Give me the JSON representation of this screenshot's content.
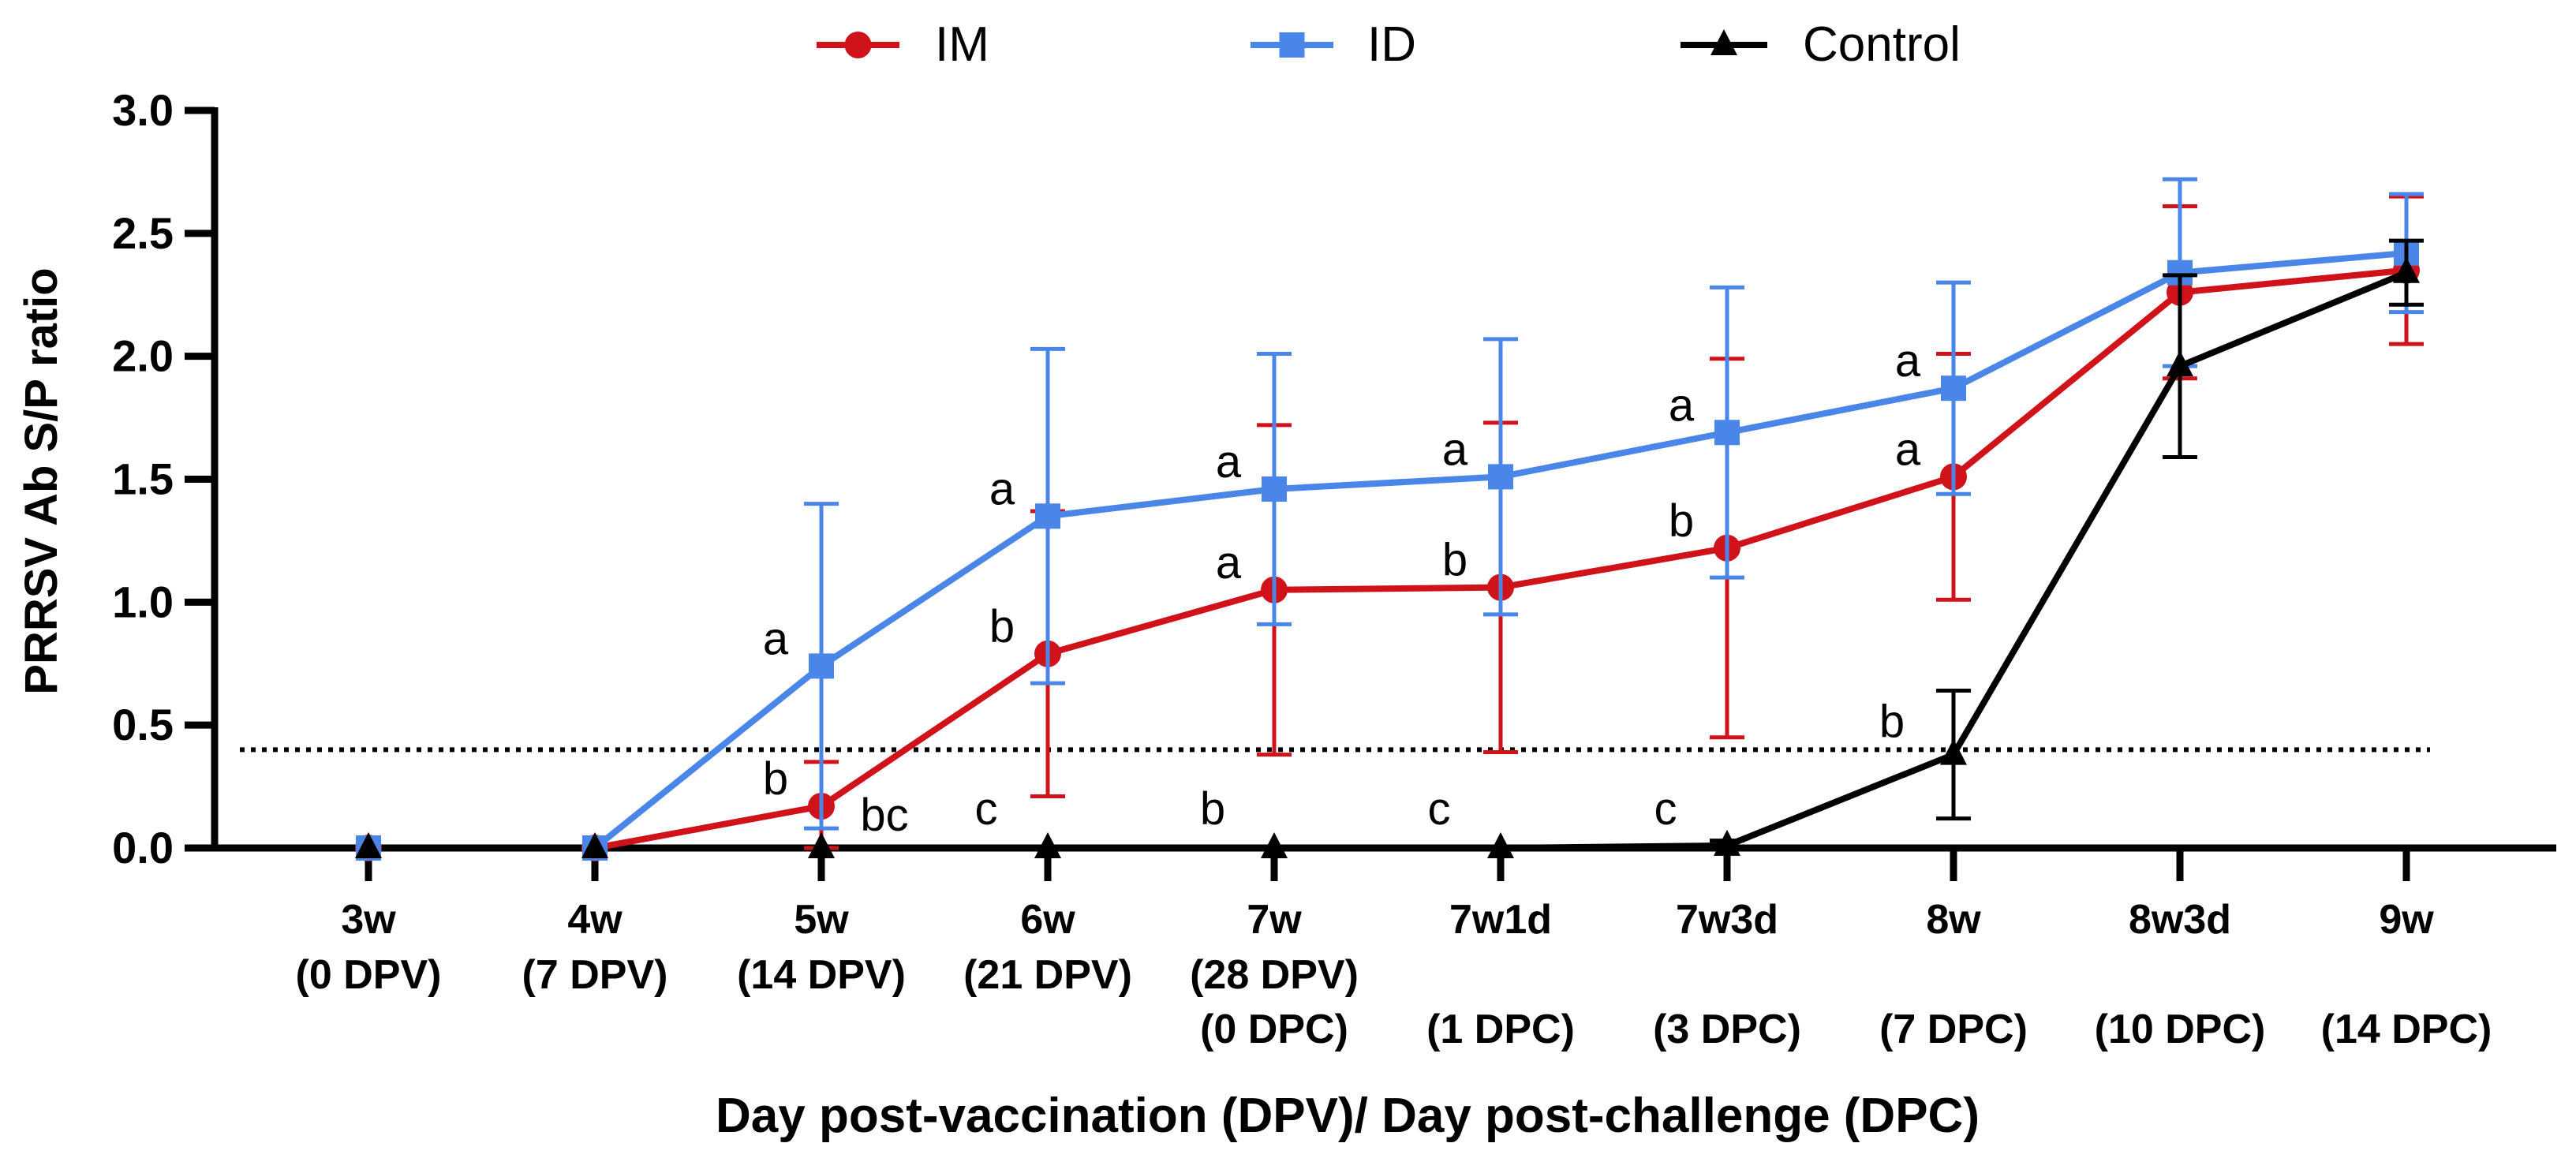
{
  "chart_data": {
    "type": "line",
    "title": "",
    "xlabel": "Day post-vaccination (DPV)/ Day post-challenge (DPC)",
    "ylabel": "PRRSV Ab S/P ratio",
    "ylim": [
      0,
      3.0
    ],
    "yticks": [
      "0.0",
      "0.5",
      "1.0",
      "1.5",
      "2.0",
      "2.5",
      "3.0"
    ],
    "categories": [
      {
        "line1": "3w",
        "line2": "(0 DPV)",
        "line3": ""
      },
      {
        "line1": "4w",
        "line2": "(7 DPV)",
        "line3": ""
      },
      {
        "line1": "5w",
        "line2": "(14 DPV)",
        "line3": ""
      },
      {
        "line1": "6w",
        "line2": "(21 DPV)",
        "line3": ""
      },
      {
        "line1": "7w",
        "line2": "(28 DPV)",
        "line3": "(0 DPC)"
      },
      {
        "line1": "7w1d",
        "line2": "",
        "line3": "(1 DPC)"
      },
      {
        "line1": "7w3d",
        "line2": "",
        "line3": "(3 DPC)"
      },
      {
        "line1": "8w",
        "line2": "",
        "line3": "(7 DPC)"
      },
      {
        "line1": "8w3d",
        "line2": "",
        "line3": "(10 DPC)"
      },
      {
        "line1": "9w",
        "line2": "",
        "line3": "(14 DPC)"
      }
    ],
    "cutoff": 0.4,
    "series": [
      {
        "name": "IM",
        "color": "#d0121b",
        "marker": "circle",
        "values": [
          0,
          0,
          0.17,
          0.79,
          1.05,
          1.06,
          1.22,
          1.51,
          2.26,
          2.35
        ],
        "errors": [
          0,
          0,
          0.18,
          0.58,
          0.67,
          0.67,
          0.77,
          0.5,
          0.35,
          0.3
        ],
        "labels": [
          "",
          "",
          "b",
          "b",
          "a",
          "b",
          "b",
          "a",
          "",
          ""
        ]
      },
      {
        "name": "ID",
        "color": "#4a86e8",
        "marker": "square",
        "values": [
          0,
          0,
          0.74,
          1.35,
          1.46,
          1.51,
          1.69,
          1.87,
          2.34,
          2.42
        ],
        "errors": [
          0,
          0,
          0.66,
          0.68,
          0.55,
          0.56,
          0.59,
          0.43,
          0.38,
          0.24
        ],
        "labels": [
          "",
          "",
          "a",
          "a",
          "a",
          "a",
          "a",
          "a",
          "",
          ""
        ]
      },
      {
        "name": "Control",
        "color": "#000000",
        "marker": "triangle",
        "values": [
          0,
          0,
          0,
          0,
          0,
          0,
          0.01,
          0.38,
          1.96,
          2.34
        ],
        "errors": [
          0,
          0,
          0,
          0,
          0,
          0,
          0.02,
          0.26,
          0.37,
          0.13
        ],
        "labels": [
          "",
          "",
          "bc",
          "c",
          "b",
          "c",
          "c",
          "b",
          "",
          ""
        ]
      }
    ],
    "legend_position": "top-center"
  }
}
